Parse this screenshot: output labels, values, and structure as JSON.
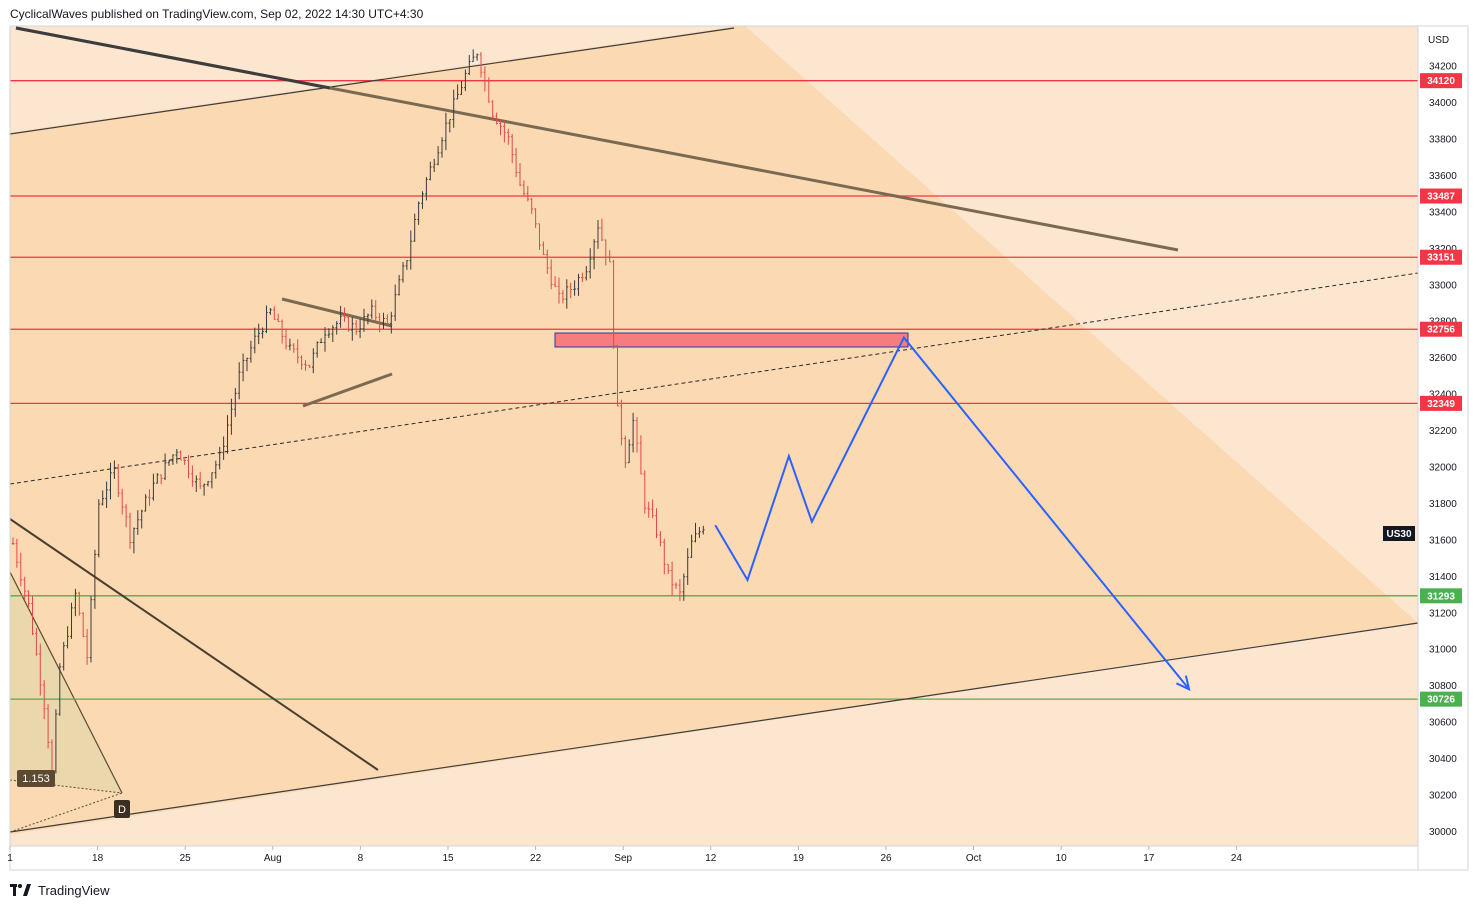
{
  "header": {
    "published": "CyclicalWaves published on TradingView.com, Sep 02, 2022 14:30 UTC+4:30"
  },
  "footer": {
    "brand": "TradingView",
    "logo_icon": "tradingview-logo-icon"
  },
  "chart_data": {
    "type": "candlestick",
    "symbol_label": "US30",
    "currency_label": "USD",
    "ylim": [
      29920,
      34420
    ],
    "y_ticks": [
      30000,
      30200,
      30400,
      30600,
      30800,
      31000,
      31200,
      31400,
      31600,
      31800,
      32000,
      32200,
      32400,
      32600,
      32800,
      33000,
      33200,
      33400,
      33600,
      33800,
      34000,
      34200
    ],
    "x_tick_labels": [
      "1",
      "18",
      "25",
      "Aug",
      "8",
      "15",
      "22",
      "Sep",
      "12",
      "19",
      "26",
      "Oct",
      "10",
      "17",
      "24"
    ],
    "levels": [
      {
        "value": 34120,
        "label": "34120",
        "color": "#f23645"
      },
      {
        "value": 33487,
        "label": "33487",
        "color": "#f23645"
      },
      {
        "value": 33151,
        "label": "33151",
        "color": "#f23645"
      },
      {
        "value": 32756,
        "label": "32756",
        "color": "#f23645"
      },
      {
        "value": 32349,
        "label": "32349",
        "color": "#f23645"
      },
      {
        "value": 31293,
        "label": "31293",
        "color": "#4caf50"
      },
      {
        "value": 30726,
        "label": "30726",
        "color": "#4caf50"
      }
    ],
    "annotations": {
      "ratio_label": "1.153",
      "point_label": "D"
    },
    "colors": {
      "up": "#26a69a",
      "down": "#f23645",
      "candle": "#3a3a3a",
      "projection": "#2962ff",
      "zone": "#f77c80",
      "channel_fill": "#fbd9b2",
      "outer_fill": "#fce6cf"
    },
    "candle_path": [
      [
        0,
        31580
      ],
      [
        4,
        31240
      ],
      [
        8,
        30700
      ],
      [
        10,
        30320
      ],
      [
        12,
        30900
      ],
      [
        16,
        31300
      ],
      [
        19,
        30960
      ],
      [
        22,
        31800
      ],
      [
        26,
        31980
      ],
      [
        30,
        31620
      ],
      [
        36,
        31900
      ],
      [
        42,
        32100
      ],
      [
        48,
        31880
      ],
      [
        53,
        32050
      ],
      [
        58,
        32500
      ],
      [
        62,
        32700
      ],
      [
        66,
        32850
      ],
      [
        71,
        32640
      ],
      [
        76,
        32560
      ],
      [
        80,
        32750
      ],
      [
        84,
        32800
      ],
      [
        88,
        32760
      ],
      [
        92,
        32850
      ],
      [
        96,
        32780
      ],
      [
        101,
        33150
      ],
      [
        104,
        33450
      ],
      [
        110,
        33820
      ],
      [
        116,
        34150
      ],
      [
        119,
        34280
      ],
      [
        123,
        33950
      ],
      [
        127,
        33800
      ],
      [
        130,
        33550
      ],
      [
        133,
        33400
      ],
      [
        136,
        33150
      ],
      [
        140,
        32920
      ],
      [
        144,
        33000
      ],
      [
        147,
        33100
      ],
      [
        150,
        33330
      ],
      [
        153,
        33100
      ],
      [
        155,
        32300
      ],
      [
        157,
        32050
      ],
      [
        159,
        32250
      ],
      [
        162,
        31800
      ],
      [
        165,
        31650
      ],
      [
        168,
        31400
      ],
      [
        171,
        31300
      ],
      [
        174,
        31580
      ],
      [
        177,
        31680
      ]
    ],
    "projection": [
      [
        0,
        31680
      ],
      [
        7,
        31380
      ],
      [
        16,
        32060
      ],
      [
        21,
        31700
      ],
      [
        41,
        32710
      ],
      [
        103,
        30780
      ]
    ]
  }
}
